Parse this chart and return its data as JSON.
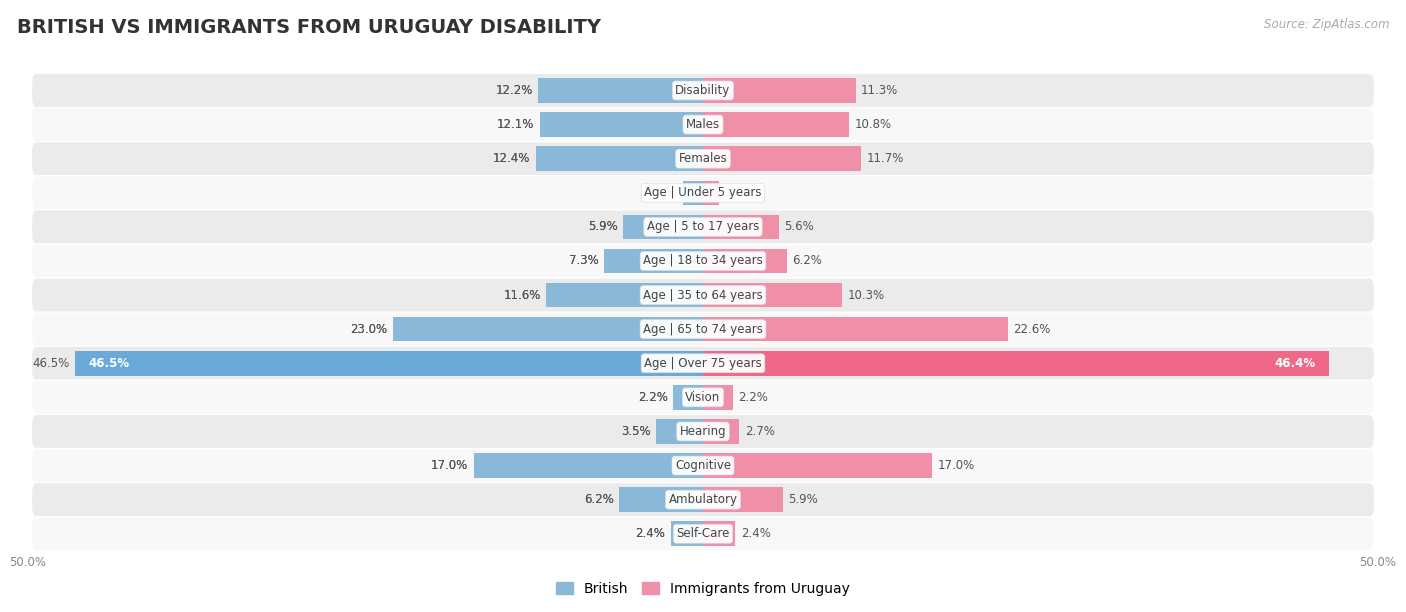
{
  "title": "BRITISH VS IMMIGRANTS FROM URUGUAY DISABILITY",
  "source": "Source: ZipAtlas.com",
  "categories": [
    "Disability",
    "Males",
    "Females",
    "Age | Under 5 years",
    "Age | 5 to 17 years",
    "Age | 18 to 34 years",
    "Age | 35 to 64 years",
    "Age | 65 to 74 years",
    "Age | Over 75 years",
    "Vision",
    "Hearing",
    "Cognitive",
    "Ambulatory",
    "Self-Care"
  ],
  "british_values": [
    12.2,
    12.1,
    12.4,
    1.5,
    5.9,
    7.3,
    11.6,
    23.0,
    46.5,
    2.2,
    3.5,
    17.0,
    6.2,
    2.4
  ],
  "uruguay_values": [
    11.3,
    10.8,
    11.7,
    1.2,
    5.6,
    6.2,
    10.3,
    22.6,
    46.4,
    2.2,
    2.7,
    17.0,
    5.9,
    2.4
  ],
  "british_color": "#8ab8d8",
  "uruguay_color": "#f090a8",
  "british_color_strong": "#6aaad8",
  "uruguay_color_strong": "#f06888",
  "axis_max": 50.0,
  "row_even_color": "#ebebeb",
  "row_odd_color": "#f8f8f8",
  "bar_height": 0.72,
  "title_fontsize": 14,
  "label_fontsize": 8.5,
  "value_fontsize": 8.5,
  "legend_fontsize": 10
}
